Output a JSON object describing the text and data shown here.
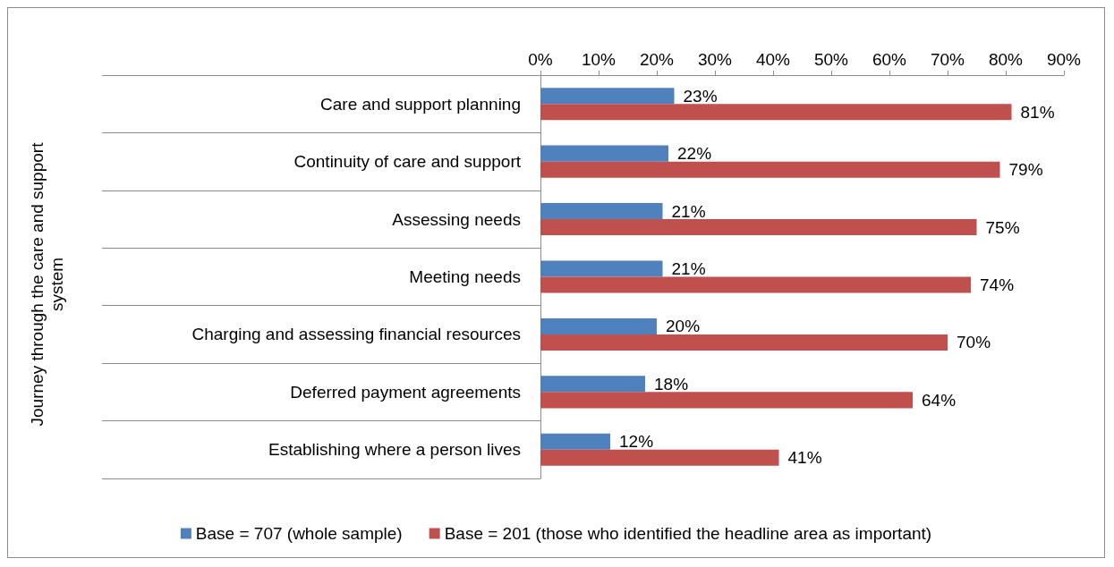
{
  "chart_data": {
    "type": "bar",
    "orientation": "horizontal",
    "annotations": [
      "Journey through the care and support system"
    ],
    "categories": [
      "Care and support planning",
      "Continuity of care and support",
      "Assessing needs",
      "Meeting needs",
      "Charging and assessing financial resources",
      "Deferred payment agreements",
      "Establishing where a person lives"
    ],
    "series": [
      {
        "name": "Base = 707 (whole sample)",
        "color": "#4f81bd",
        "values": [
          23,
          22,
          21,
          21,
          20,
          18,
          12
        ],
        "value_labels": [
          "23%",
          "22%",
          "21%",
          "21%",
          "20%",
          "18%",
          "12%"
        ]
      },
      {
        "name": "Base = 201 (those who identified the headline area as important)",
        "color": "#c0504d",
        "values": [
          81,
          79,
          75,
          74,
          70,
          64,
          41
        ],
        "value_labels": [
          "81%",
          "79%",
          "75%",
          "74%",
          "70%",
          "64%",
          "41%"
        ]
      }
    ],
    "xlim": [
      0,
      90
    ],
    "xticks": [
      {
        "value": 0,
        "label": "0%"
      },
      {
        "value": 10,
        "label": "10%"
      },
      {
        "value": 20,
        "label": "20%"
      },
      {
        "value": 30,
        "label": "30%"
      },
      {
        "value": 40,
        "label": "40%"
      },
      {
        "value": 50,
        "label": "50%"
      },
      {
        "value": 60,
        "label": "60%"
      },
      {
        "value": 70,
        "label": "70%"
      },
      {
        "value": 80,
        "label": "80%"
      },
      {
        "value": 90,
        "label": "90%"
      }
    ],
    "grid": false,
    "legend": "bottom"
  }
}
